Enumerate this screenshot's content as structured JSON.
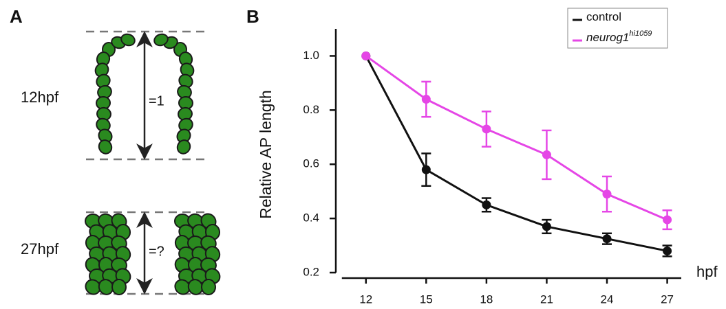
{
  "panel_a": {
    "letter": "A",
    "rows": [
      {
        "label": "12hpf",
        "ratio": "=1"
      },
      {
        "label": "27hpf",
        "ratio": "=?"
      }
    ]
  },
  "chart_data": {
    "type": "line",
    "panel_label": "B",
    "x_label": "hpf",
    "y_label": "Relative AP length",
    "x": [
      12,
      15,
      18,
      21,
      24,
      27
    ],
    "series": [
      {
        "name": "control",
        "color": "#111111",
        "values": [
          1.0,
          0.58,
          0.45,
          0.37,
          0.325,
          0.28
        ],
        "errors": [
          0,
          0.06,
          0.025,
          0.025,
          0.02,
          0.02
        ]
      },
      {
        "name": "neurog1",
        "name_sup": "hi1059",
        "color": "#e546e6",
        "values": [
          1.0,
          0.84,
          0.73,
          0.635,
          0.49,
          0.395
        ],
        "errors": [
          0,
          0.065,
          0.065,
          0.09,
          0.065,
          0.035
        ]
      }
    ],
    "xlim": [
      10.5,
      27.7
    ],
    "ylim": [
      0.2,
      1.1
    ],
    "xticks": [
      12,
      15,
      18,
      21,
      24,
      27
    ],
    "yticks": [
      0.2,
      0.4,
      0.6,
      0.8,
      {
        "value": 1,
        "label": "1.0"
      }
    ],
    "legend": "upper right"
  }
}
